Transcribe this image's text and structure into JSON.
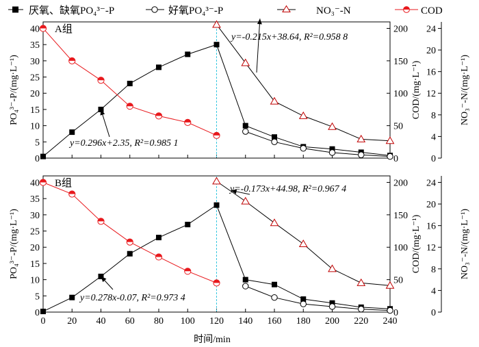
{
  "legend": [
    {
      "label": "厌氧、缺氧PO₄³⁻-P",
      "marker": "square-filled",
      "color": "#000000"
    },
    {
      "label": "好氧PO₄³⁻-P",
      "marker": "circle-open",
      "color": "#000000"
    },
    {
      "label": "NO₃⁻-N",
      "marker": "triangle-open",
      "color": "#c00000"
    },
    {
      "label": "COD",
      "marker": "circle-half-red",
      "color": "#e8191d"
    }
  ],
  "xlabel": "时间/min",
  "chart_data": [
    {
      "type": "line",
      "panel_label": "A组",
      "x_ticks": [
        0,
        20,
        40,
        60,
        80,
        100,
        120,
        140,
        160,
        180,
        200,
        220,
        240
      ],
      "xlim": [
        0,
        240
      ],
      "y_left_label": "PO₄³⁻-P/(mg·L⁻¹)",
      "y_left_lim": [
        0,
        42
      ],
      "y_left_ticks": [
        0,
        5,
        10,
        15,
        20,
        25,
        30,
        35,
        40
      ],
      "y_cod_label": "COD/(mg·L⁻¹)",
      "y_cod_lim": [
        0,
        210
      ],
      "y_cod_ticks": [
        0,
        50,
        100,
        150,
        200
      ],
      "y_no3_label": "NO₃⁻-N/(mg·L⁻¹)",
      "y_no3_lim": [
        0,
        25.2
      ],
      "y_no3_ticks": [
        0,
        4,
        8,
        12,
        16,
        20,
        24
      ],
      "series": [
        {
          "name": "厌氧、缺氧PO₄³⁻-P",
          "axis": "left",
          "marker": "square-filled",
          "x": [
            0,
            20,
            40,
            60,
            80,
            100,
            120,
            140,
            160,
            180,
            200,
            220,
            240
          ],
          "y": [
            0.5,
            8,
            15,
            23,
            28,
            32,
            35,
            10,
            6.5,
            3.5,
            2.8,
            1.8,
            0.8
          ]
        },
        {
          "name": "好氧PO₄³⁻-P",
          "axis": "left",
          "marker": "circle-open",
          "x": [
            140,
            160,
            180,
            200,
            220,
            240
          ],
          "y": [
            8.2,
            5,
            3,
            1.7,
            1,
            0.5
          ]
        },
        {
          "name": "NO₃⁻-N",
          "axis": "no3",
          "marker": "triangle-open",
          "x": [
            120,
            140,
            160,
            180,
            200,
            220,
            240
          ],
          "y": [
            24.7,
            17.6,
            10.5,
            7.8,
            5.8,
            3.5,
            3.2
          ]
        },
        {
          "name": "COD",
          "axis": "cod",
          "marker": "circle-half-red",
          "x": [
            0,
            20,
            40,
            60,
            80,
            100,
            120
          ],
          "y": [
            200,
            150,
            120,
            80,
            65,
            55,
            35
          ]
        }
      ],
      "annotations": [
        {
          "text": "y=0.296x+2.35, R²=0.985 1",
          "target_x": 40,
          "target_y": 15
        },
        {
          "text": "y=-0.215x+38.64, R²=0.958 8",
          "target_x": 150,
          "target_y": 25.8
        }
      ],
      "vline_x": 120
    },
    {
      "type": "line",
      "panel_label": "B组",
      "x_ticks": [
        0,
        20,
        40,
        60,
        80,
        100,
        120,
        140,
        160,
        180,
        200,
        220,
        240
      ],
      "xlim": [
        0,
        240
      ],
      "y_left_label": "PO₄³⁻-P/(mg·L⁻¹)",
      "y_left_lim": [
        0,
        42
      ],
      "y_left_ticks": [
        0,
        5,
        10,
        15,
        20,
        25,
        30,
        35,
        40
      ],
      "y_cod_label": "COD/(mg·L⁻¹)",
      "y_cod_lim": [
        0,
        210
      ],
      "y_cod_ticks": [
        0,
        50,
        100,
        150,
        200
      ],
      "y_no3_label": "NO₃⁻-N/(mg·L⁻¹)",
      "y_no3_lim": [
        0,
        25.2
      ],
      "y_no3_ticks": [
        0,
        4,
        8,
        12,
        16,
        20,
        24
      ],
      "series": [
        {
          "name": "厌氧、缺氧PO₄³⁻-P",
          "axis": "left",
          "marker": "square-filled",
          "x": [
            0,
            20,
            40,
            60,
            80,
            100,
            120,
            140,
            160,
            180,
            200,
            220,
            240
          ],
          "y": [
            0.2,
            4.5,
            11,
            18,
            23,
            27,
            33,
            10,
            8.5,
            4,
            2.8,
            1.5,
            1
          ]
        },
        {
          "name": "好氧PO₄³⁻-P",
          "axis": "left",
          "marker": "circle-open",
          "x": [
            140,
            160,
            180,
            200,
            220,
            240
          ],
          "y": [
            8,
            4.5,
            2.5,
            1.7,
            0.9,
            0.5
          ]
        },
        {
          "name": "NO₃⁻-N",
          "axis": "no3",
          "marker": "triangle-open",
          "x": [
            120,
            140,
            160,
            180,
            200,
            220,
            240
          ],
          "y": [
            24.2,
            20.5,
            16.5,
            12.6,
            8,
            5.4,
            4.9
          ]
        },
        {
          "name": "COD",
          "axis": "cod",
          "marker": "circle-half-red",
          "x": [
            0,
            20,
            40,
            60,
            80,
            100,
            120
          ],
          "y": [
            200,
            182,
            140,
            108,
            85,
            63,
            45
          ]
        }
      ],
      "annotations": [
        {
          "text": "y=0.278x-0.07, R²=0.973 4",
          "target_x": 40,
          "target_y": 11
        },
        {
          "text": "y=-0.173x+44.98, R²=0.967 4",
          "target_x": 130,
          "target_y": 22.5
        }
      ],
      "vline_x": 120
    }
  ]
}
